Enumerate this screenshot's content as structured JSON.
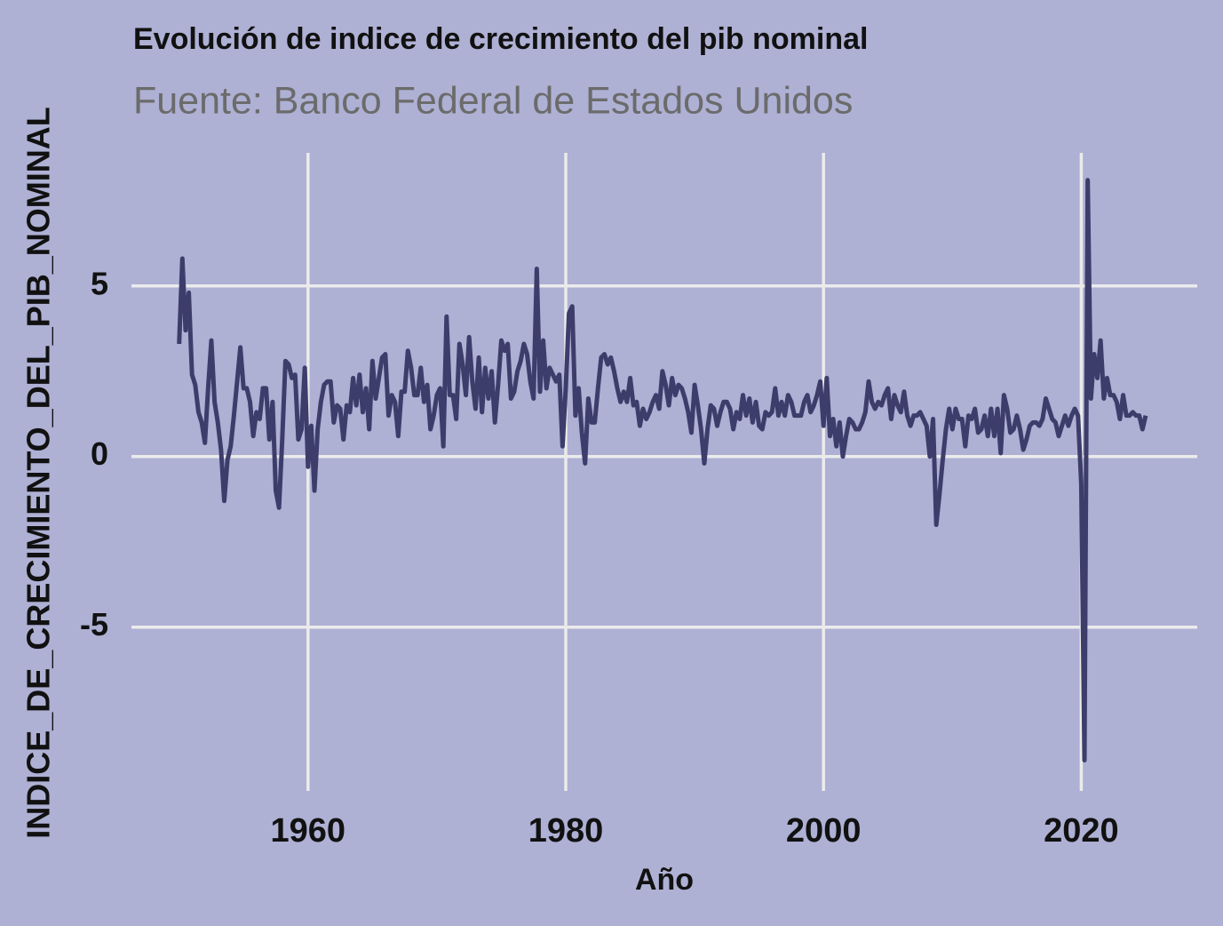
{
  "chart_data": {
    "type": "line",
    "title": "Evolución de indice de crecimiento del pib nominal",
    "subtitle": "Fuente: Banco Federal de Estados Unidos",
    "x_label": "Año",
    "y_label": "INDICE_DE_CRECIMIENTO_DEL_PIB_NOMINAL",
    "x": [
      1950,
      1950.25,
      1950.5,
      1950.75,
      1951,
      1951.25,
      1951.5,
      1951.75,
      1952,
      1952.25,
      1952.5,
      1952.75,
      1953,
      1953.25,
      1953.5,
      1953.75,
      1954,
      1954.25,
      1954.5,
      1954.75,
      1955,
      1955.25,
      1955.5,
      1955.75,
      1956,
      1956.25,
      1956.5,
      1956.75,
      1957,
      1957.25,
      1957.5,
      1957.75,
      1958,
      1958.25,
      1958.5,
      1958.75,
      1959,
      1959.25,
      1959.5,
      1959.75,
      1960,
      1960.25,
      1960.5,
      1960.75,
      1961,
      1961.25,
      1961.5,
      1961.75,
      1962,
      1962.25,
      1962.5,
      1962.75,
      1963,
      1963.25,
      1963.5,
      1963.75,
      1964,
      1964.25,
      1964.5,
      1964.75,
      1965,
      1965.25,
      1965.5,
      1965.75,
      1966,
      1966.25,
      1966.5,
      1966.75,
      1967,
      1967.25,
      1967.5,
      1967.75,
      1968,
      1968.25,
      1968.5,
      1968.75,
      1969,
      1969.25,
      1969.5,
      1969.75,
      1970,
      1970.25,
      1970.5,
      1970.75,
      1971,
      1971.25,
      1971.5,
      1971.75,
      1972,
      1972.25,
      1972.5,
      1972.75,
      1973,
      1973.25,
      1973.5,
      1973.75,
      1974,
      1974.25,
      1974.5,
      1974.75,
      1975,
      1975.25,
      1975.5,
      1975.75,
      1976,
      1976.25,
      1976.5,
      1976.75,
      1977,
      1977.25,
      1977.5,
      1977.75,
      1978,
      1978.25,
      1978.5,
      1978.75,
      1979,
      1979.25,
      1979.5,
      1979.75,
      1980,
      1980.25,
      1980.5,
      1980.75,
      1981,
      1981.25,
      1981.5,
      1981.75,
      1982,
      1982.25,
      1982.5,
      1982.75,
      1983,
      1983.25,
      1983.5,
      1983.75,
      1984,
      1984.25,
      1984.5,
      1984.75,
      1985,
      1985.25,
      1985.5,
      1985.75,
      1986,
      1986.25,
      1986.5,
      1986.75,
      1987,
      1987.25,
      1987.5,
      1987.75,
      1988,
      1988.25,
      1988.5,
      1988.75,
      1989,
      1989.25,
      1989.5,
      1989.75,
      1990,
      1990.25,
      1990.5,
      1990.75,
      1991,
      1991.25,
      1991.5,
      1991.75,
      1992,
      1992.25,
      1992.5,
      1992.75,
      1993,
      1993.25,
      1993.5,
      1993.75,
      1994,
      1994.25,
      1994.5,
      1994.75,
      1995,
      1995.25,
      1995.5,
      1995.75,
      1996,
      1996.25,
      1996.5,
      1996.75,
      1997,
      1997.25,
      1997.5,
      1997.75,
      1998,
      1998.25,
      1998.5,
      1998.75,
      1999,
      1999.25,
      1999.5,
      1999.75,
      2000,
      2000.25,
      2000.5,
      2000.75,
      2001,
      2001.25,
      2001.5,
      2001.75,
      2002,
      2002.25,
      2002.5,
      2002.75,
      2003,
      2003.25,
      2003.5,
      2003.75,
      2004,
      2004.25,
      2004.5,
      2004.75,
      2005,
      2005.25,
      2005.5,
      2005.75,
      2006,
      2006.25,
      2006.5,
      2006.75,
      2007,
      2007.25,
      2007.5,
      2007.75,
      2008,
      2008.25,
      2008.5,
      2008.75,
      2009,
      2009.25,
      2009.5,
      2009.75,
      2010,
      2010.25,
      2010.5,
      2010.75,
      2011,
      2011.25,
      2011.5,
      2011.75,
      2012,
      2012.25,
      2012.5,
      2012.75,
      2013,
      2013.25,
      2013.5,
      2013.75,
      2014,
      2014.25,
      2014.5,
      2014.75,
      2015,
      2015.25,
      2015.5,
      2015.75,
      2016,
      2016.25,
      2016.5,
      2016.75,
      2017,
      2017.25,
      2017.5,
      2017.75,
      2018,
      2018.25,
      2018.5,
      2018.75,
      2019,
      2019.25,
      2019.5,
      2019.75,
      2020,
      2020.25,
      2020.5,
      2020.75,
      2021,
      2021.25,
      2021.5,
      2021.75,
      2022,
      2022.25,
      2022.5,
      2022.75,
      2023,
      2023.25,
      2023.5,
      2023.75,
      2024,
      2024.25,
      2024.5,
      2024.75,
      2025
    ],
    "series": [
      {
        "name": "INDICE_DE_CRECIMIENTO_DEL_PIB_NOMINAL",
        "color": "#3d3d6b",
        "values": [
          3.3,
          5.8,
          3.7,
          4.8,
          2.4,
          2.1,
          1.3,
          1.0,
          0.4,
          2.0,
          3.4,
          1.6,
          1.0,
          0.2,
          -1.3,
          -0.1,
          0.3,
          1.2,
          2.2,
          3.2,
          2.0,
          2.0,
          1.6,
          0.6,
          1.3,
          1.1,
          2.0,
          2.0,
          0.5,
          1.6,
          -1.0,
          -1.5,
          0.5,
          2.8,
          2.7,
          2.3,
          2.4,
          0.5,
          0.8,
          2.6,
          -0.3,
          0.9,
          -1.0,
          0.8,
          1.6,
          2.1,
          2.2,
          2.2,
          1.0,
          1.5,
          1.4,
          0.5,
          1.5,
          1.3,
          2.3,
          1.5,
          2.4,
          1.3,
          2.0,
          0.8,
          2.8,
          1.7,
          2.3,
          2.9,
          3.0,
          1.2,
          1.8,
          1.6,
          0.6,
          1.9,
          1.9,
          3.1,
          2.6,
          1.8,
          1.8,
          2.6,
          1.6,
          2.1,
          0.8,
          1.2,
          1.8,
          2.0,
          0.3,
          4.1,
          1.8,
          1.8,
          1.1,
          3.3,
          2.7,
          1.8,
          3.5,
          2.2,
          1.4,
          2.9,
          1.3,
          2.6,
          1.7,
          2.5,
          1.0,
          2.1,
          3.4,
          3.1,
          3.3,
          1.7,
          1.9,
          2.5,
          2.8,
          3.3,
          3.0,
          2.2,
          1.7,
          5.5,
          1.9,
          3.4,
          2.0,
          2.6,
          2.4,
          2.2,
          2.4,
          0.3,
          2.0,
          4.2,
          4.4,
          1.2,
          2.0,
          0.7,
          -0.2,
          1.7,
          1.0,
          1.0,
          2.0,
          2.9,
          3.0,
          2.7,
          2.9,
          2.5,
          2.0,
          1.6,
          1.9,
          1.6,
          2.3,
          1.5,
          1.6,
          0.9,
          1.4,
          1.1,
          1.3,
          1.6,
          1.8,
          1.4,
          2.5,
          2.1,
          1.5,
          2.3,
          1.8,
          2.1,
          2.0,
          1.7,
          1.3,
          0.7,
          2.1,
          1.5,
          0.8,
          -0.2,
          0.8,
          1.5,
          1.4,
          0.9,
          1.3,
          1.6,
          1.6,
          1.4,
          0.8,
          1.3,
          1.1,
          1.8,
          1.2,
          1.7,
          1.0,
          1.6,
          0.9,
          0.8,
          1.3,
          1.2,
          1.3,
          2.0,
          1.2,
          1.6,
          1.2,
          1.8,
          1.6,
          1.2,
          1.2,
          1.2,
          1.6,
          1.8,
          1.3,
          1.5,
          1.8,
          2.2,
          0.9,
          2.3,
          0.6,
          1.1,
          0.3,
          1.0,
          0.0,
          0.6,
          1.1,
          1.0,
          0.8,
          0.8,
          1.0,
          1.3,
          2.2,
          1.6,
          1.4,
          1.6,
          1.5,
          1.8,
          2.0,
          1.1,
          1.8,
          1.5,
          1.3,
          1.9,
          1.2,
          0.9,
          1.2,
          1.2,
          1.3,
          1.1,
          0.9,
          0.0,
          1.1,
          -2.0,
          -1.1,
          -0.1,
          0.8,
          1.4,
          0.8,
          1.4,
          1.1,
          1.1,
          0.3,
          1.2,
          1.1,
          1.4,
          0.7,
          0.8,
          1.2,
          0.6,
          1.4,
          0.6,
          1.4,
          0.1,
          1.8,
          1.4,
          0.7,
          0.8,
          1.2,
          0.8,
          0.2,
          0.5,
          0.9,
          1.0,
          1.0,
          0.9,
          1.1,
          1.7,
          1.4,
          1.1,
          1.0,
          0.6,
          0.9,
          1.2,
          0.9,
          1.2,
          1.4,
          1.2,
          -0.8,
          -8.9,
          8.1,
          1.7,
          3.0,
          2.3,
          3.4,
          1.7,
          2.3,
          1.8,
          1.8,
          1.6,
          1.1,
          1.8,
          1.2,
          1.2,
          1.3,
          1.2,
          1.2,
          0.8,
          1.2
        ]
      }
    ],
    "xlim": [
      1946.3,
      2029.0
    ],
    "xticks": [
      1960,
      1980,
      2000,
      2020
    ],
    "ylim": [
      -9.8,
      8.9
    ],
    "yticks": [
      -5,
      0,
      5
    ],
    "grid": true
  }
}
